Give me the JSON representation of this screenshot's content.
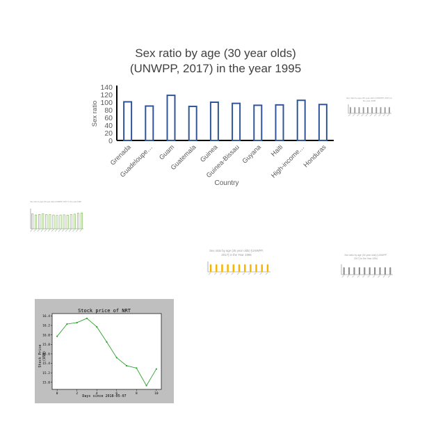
{
  "chart_data": [
    {
      "type": "bar",
      "title_line1": "Sex ratio by age (30 year olds)",
      "title_line2": "(UNWPP, 2017) in the year 1995",
      "xlabel": "Country",
      "ylabel": "Sex ratio",
      "categories": [
        "Grenada",
        "Guadeloupe…",
        "Guam",
        "Guatemala",
        "Guinea",
        "Guinea-Bissau",
        "Guyana",
        "Haiti",
        "High-income…",
        "Honduras"
      ],
      "values": [
        101,
        90,
        118,
        89,
        100,
        97,
        92,
        93,
        105,
        94
      ],
      "ylim": [
        0,
        140
      ],
      "yticks": [
        "140",
        "120",
        "100",
        "80",
        "60",
        "40",
        "20",
        "0"
      ],
      "bar_color": "#2f5597",
      "bar_fill": "#ffffff"
    },
    {
      "type": "bar",
      "title": "Sex ratio by age (30 year olds) (UNWPP, 2017) in the year 1995",
      "values": [
        95,
        95,
        95,
        95,
        95,
        95,
        95,
        95,
        95,
        95
      ],
      "ylim": [
        0,
        140
      ],
      "color": "#9a9a9a"
    },
    {
      "type": "bar",
      "title": "Sex ratio by age (30 year olds) (UNWPP, 2017) in the year 1995",
      "values": [
        103,
        96,
        100,
        104,
        99,
        98,
        96,
        93,
        96,
        97,
        95,
        99,
        102,
        108,
        110
      ],
      "ylim": [
        0,
        140
      ],
      "color": "#70ad47"
    },
    {
      "type": "bar",
      "title_line1": "Sex ratio by age (45 year olds) (UNWPP,",
      "title_line2": "2017) in the Year 1995",
      "values": [
        100,
        100,
        100,
        100,
        100,
        100,
        100,
        100,
        100,
        100,
        100
      ],
      "ylim": [
        0,
        140
      ],
      "color": "#f5b400"
    },
    {
      "type": "bar",
      "title_line1": "Sex ratio by age (30 year olds) (UNWPP,",
      "title_line2": "2017) in the Year 1994",
      "values": [
        98,
        98,
        98,
        98,
        98,
        98,
        98,
        98,
        98,
        98
      ],
      "ylim": [
        0,
        140
      ],
      "color": "#8c8c8c"
    },
    {
      "type": "line",
      "title": "Stock price of NRT",
      "xlabel": "Days since 2018-05-07",
      "ylabel": "Stock Price (USD)",
      "x": [
        0,
        1,
        2,
        3,
        4,
        5,
        6,
        7,
        8,
        9,
        10
      ],
      "y": [
        15.97,
        16.23,
        16.26,
        16.35,
        16.17,
        15.85,
        15.52,
        15.35,
        15.3,
        14.93,
        15.28
      ],
      "xlim": [
        -0.5,
        10.5
      ],
      "ylim": [
        14.85,
        16.45
      ],
      "xticks": [
        "0",
        "2",
        "4",
        "6",
        "8",
        "10"
      ],
      "yticks": [
        "16.4",
        "16.2",
        "16.0",
        "15.8",
        "15.6",
        "15.4",
        "15.2",
        "15.0"
      ],
      "color": "#2ca02c",
      "background": "#bfbfbf"
    }
  ]
}
